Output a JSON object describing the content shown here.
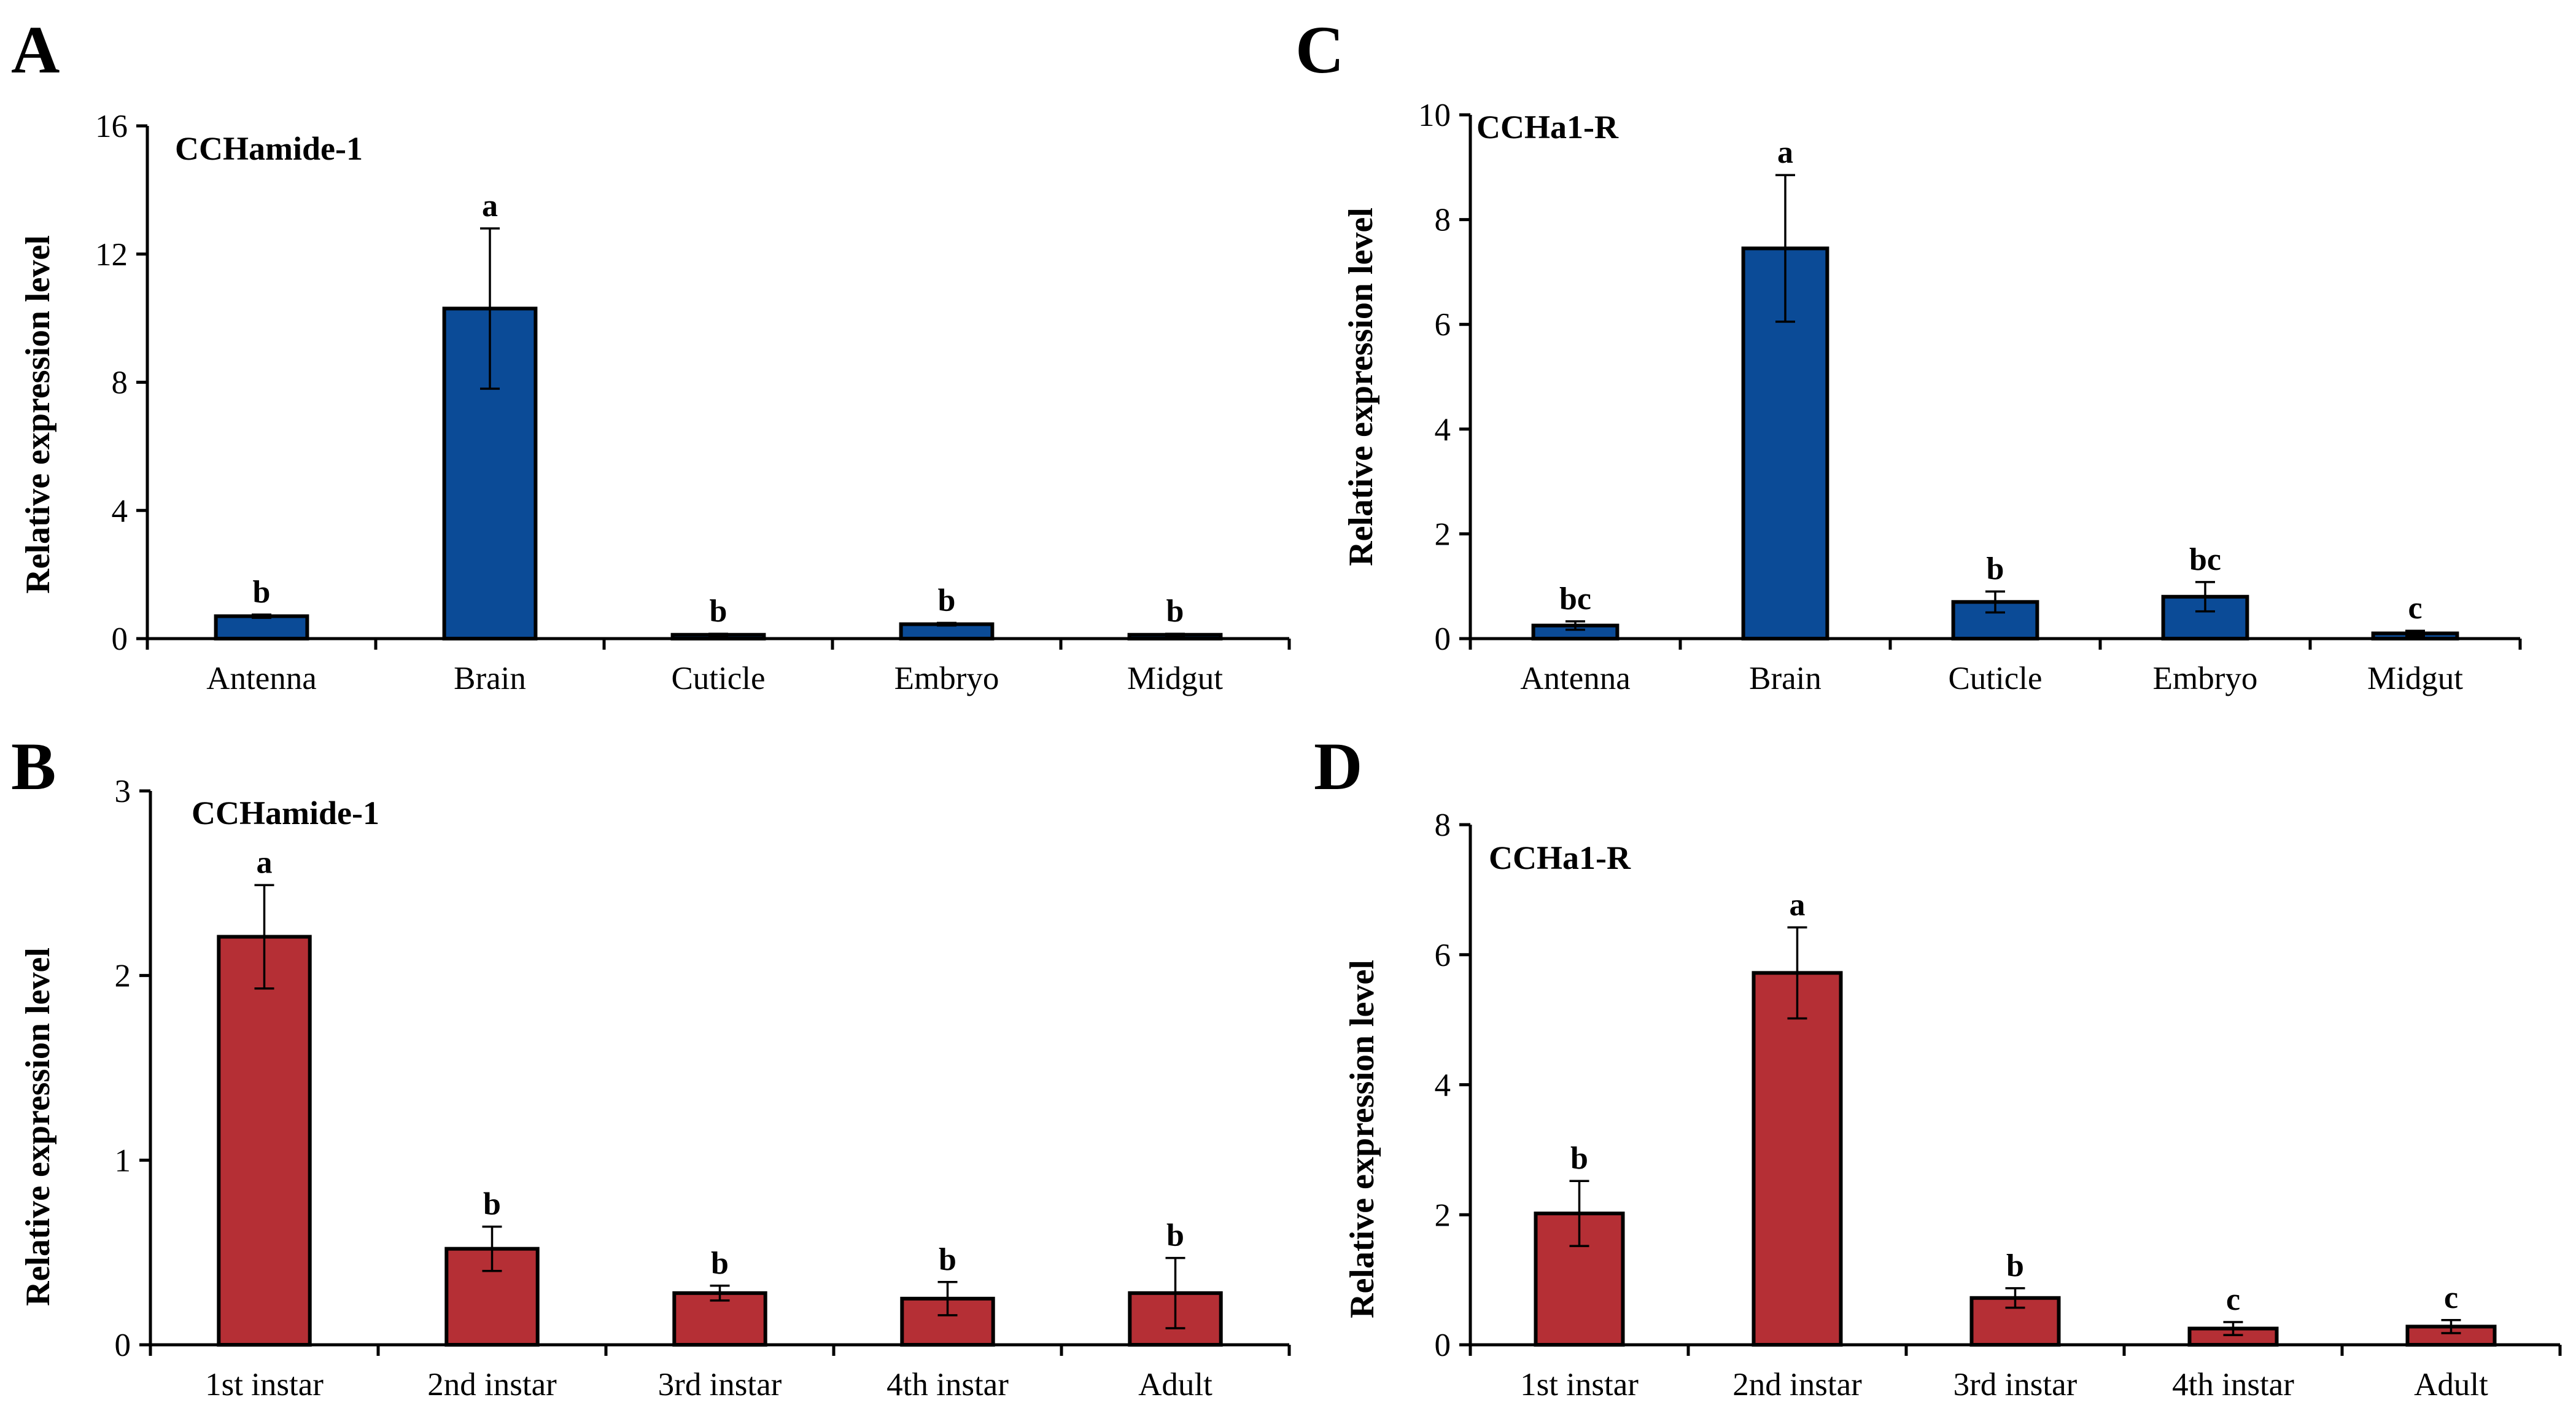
{
  "colors": {
    "tissue_bar": "#0b4b97",
    "stage_bar": "#b52f35",
    "axis": "#000000"
  },
  "chart_data": [
    {
      "panel": "A",
      "type": "bar",
      "title": "CCHamide-1",
      "xlabel": "",
      "ylabel": "Relative expression level",
      "ylim": [
        0,
        16
      ],
      "yticks": [
        0,
        4,
        8,
        12,
        16
      ],
      "color": "#0b4b97",
      "categories": [
        "Antenna",
        "Brain",
        "Cuticle",
        "Embryo",
        "Midgut"
      ],
      "values": [
        0.7,
        10.3,
        0.12,
        0.45,
        0.12
      ],
      "errors": [
        0.05,
        2.5,
        0.03,
        0.04,
        0.03
      ],
      "significance": [
        "b",
        "a",
        "b",
        "b",
        "b"
      ]
    },
    {
      "panel": "C",
      "type": "bar",
      "title": "CCHa1-R",
      "xlabel": "",
      "ylabel": "Relative expression level",
      "ylim": [
        0,
        10
      ],
      "yticks": [
        0,
        2,
        4,
        6,
        8,
        10
      ],
      "color": "#0b4b97",
      "categories": [
        "Antenna",
        "Brain",
        "Cuticle",
        "Embryo",
        "Midgut"
      ],
      "values": [
        0.25,
        7.45,
        0.7,
        0.8,
        0.1
      ],
      "errors": [
        0.08,
        1.4,
        0.2,
        0.28,
        0.05
      ],
      "significance": [
        "bc",
        "a",
        "b",
        "bc",
        "c"
      ]
    },
    {
      "panel": "B",
      "type": "bar",
      "title": "CCHamide-1",
      "xlabel": "",
      "ylabel": "Relative expression level",
      "ylim": [
        0,
        3
      ],
      "yticks": [
        0,
        1,
        2,
        3
      ],
      "color": "#b52f35",
      "categories": [
        "1st instar",
        "2nd instar",
        "3rd instar",
        "4th instar",
        "Adult"
      ],
      "values": [
        2.21,
        0.52,
        0.28,
        0.25,
        0.28
      ],
      "errors": [
        0.28,
        0.12,
        0.04,
        0.09,
        0.19
      ],
      "significance": [
        "a",
        "b",
        "b",
        "b",
        "b"
      ]
    },
    {
      "panel": "D",
      "type": "bar",
      "title": "CCHa1-R",
      "xlabel": "",
      "ylabel": "Relative expression level",
      "ylim": [
        0,
        8
      ],
      "yticks": [
        0,
        2,
        4,
        6,
        8
      ],
      "color": "#b52f35",
      "categories": [
        "1st instar",
        "2nd instar",
        "3rd instar",
        "4th instar",
        "Adult"
      ],
      "values": [
        2.02,
        5.72,
        0.72,
        0.25,
        0.28
      ],
      "errors": [
        0.5,
        0.7,
        0.15,
        0.1,
        0.1
      ],
      "significance": [
        "b",
        "a",
        "b",
        "c",
        "c"
      ]
    }
  ]
}
